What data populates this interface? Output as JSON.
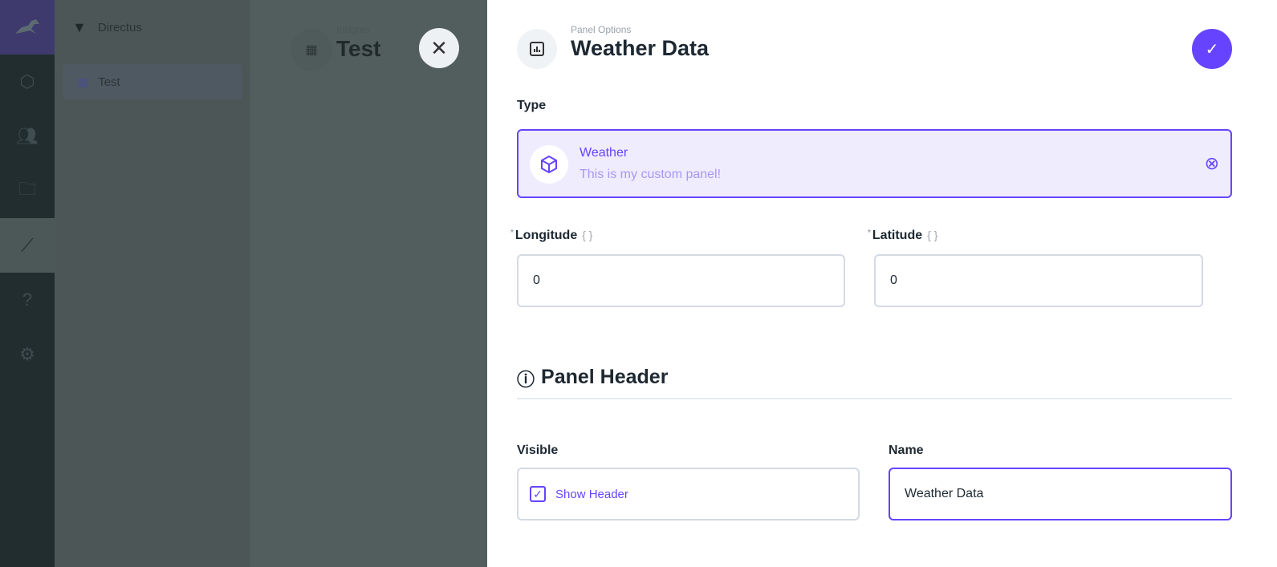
{
  "sidebar": {
    "project_name": "Directus",
    "nav_items": [
      {
        "label": "Test"
      }
    ]
  },
  "header": {
    "breadcrumb": "Insights",
    "title": "Test"
  },
  "drawer": {
    "breadcrumb": "Panel Options",
    "title": "Weather Data",
    "type_label": "Type",
    "type": {
      "name": "Weather",
      "description": "This is my custom panel!"
    },
    "longitude": {
      "label": "Longitude",
      "value": "0"
    },
    "latitude": {
      "label": "Latitude",
      "value": "0"
    },
    "section_title": "Panel Header",
    "visible": {
      "label": "Visible",
      "checkbox_label": "Show Header",
      "checked": true
    },
    "name": {
      "label": "Name",
      "value": "Weather Data"
    }
  },
  "colors": {
    "accent": "#6644ff",
    "rail": "#222d2f"
  }
}
